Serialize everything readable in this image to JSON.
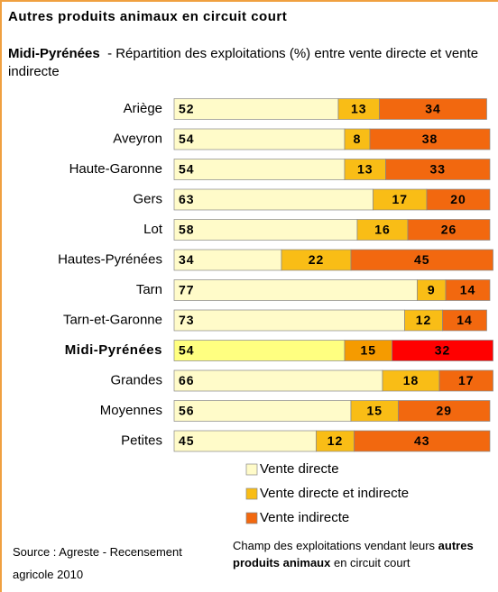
{
  "chart_data": {
    "type": "stacked_barh",
    "title": "Autres produits animaux en circuit court",
    "subtitle_bold": "Midi-Pyrénées",
    "subtitle": "- Répartition des exploitations (%) entre vente directe et vente indirecte",
    "categories": [
      "Ariège",
      "Aveyron",
      "Haute-Garonne",
      "Gers",
      "Lot",
      "Hautes-Pyrénées",
      "Tarn",
      "Tarn-et-Garonne",
      "Midi-Pyrénées",
      "Grandes",
      "Moyennes",
      "Petites"
    ],
    "highlight_category": "Midi-Pyrénées",
    "xlim": [
      0,
      100
    ],
    "series": [
      {
        "name": "Vente directe",
        "color": "#fffbc9",
        "highlight_color": "#ffff80",
        "values": [
          52,
          54,
          54,
          63,
          58,
          34,
          77,
          73,
          54,
          66,
          56,
          45
        ]
      },
      {
        "name": "Vente directe et indirecte",
        "color": "#f9bd16",
        "highlight_color": "#f59b00",
        "values": [
          13,
          8,
          13,
          17,
          16,
          22,
          9,
          12,
          15,
          18,
          15,
          12
        ]
      },
      {
        "name": "Vente indirecte",
        "color": "#f2680f",
        "highlight_color": "#ff0000",
        "values": [
          34,
          38,
          33,
          20,
          26,
          45,
          14,
          14,
          32,
          17,
          29,
          43
        ]
      }
    ],
    "source": "Source : Agreste - Recensement agricole 2010",
    "note": {
      "before": "Champ des exploitations vendant leurs",
      "bold": "autres produits animaux",
      "after": "en circuit court"
    }
  }
}
